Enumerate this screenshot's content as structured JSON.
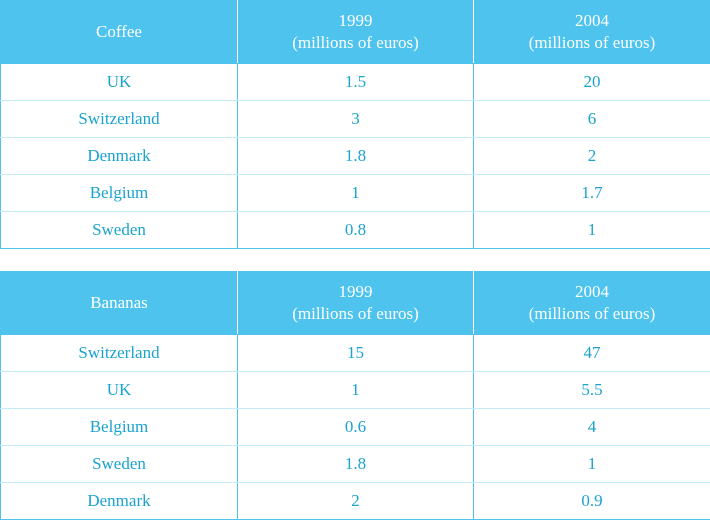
{
  "chart_data": [
    {
      "type": "table",
      "title": "Coffee",
      "columns": [
        "Coffee",
        "1999 (millions of euros)",
        "2004 (millions of euros)"
      ],
      "header": {
        "label": "Coffee",
        "col1_year": "1999",
        "col1_unit": "(millions of euros)",
        "col2_year": "2004",
        "col2_unit": "(millions of euros)"
      },
      "rows": [
        {
          "country": "UK",
          "y1999": "1.5",
          "y2004": "20"
        },
        {
          "country": "Switzerland",
          "y1999": "3",
          "y2004": "6"
        },
        {
          "country": "Denmark",
          "y1999": "1.8",
          "y2004": "2"
        },
        {
          "country": "Belgium",
          "y1999": "1",
          "y2004": "1.7"
        },
        {
          "country": "Sweden",
          "y1999": "0.8",
          "y2004": "1"
        }
      ]
    },
    {
      "type": "table",
      "title": "Bananas",
      "columns": [
        "Bananas",
        "1999 (millions of euros)",
        "2004 (millions of euros)"
      ],
      "header": {
        "label": "Bananas",
        "col1_year": "1999",
        "col1_unit": "(millions of euros)",
        "col2_year": "2004",
        "col2_unit": "(millions of euros)"
      },
      "rows": [
        {
          "country": "Switzerland",
          "y1999": "15",
          "y2004": "47"
        },
        {
          "country": "UK",
          "y1999": "1",
          "y2004": "5.5"
        },
        {
          "country": "Belgium",
          "y1999": "0.6",
          "y2004": "4"
        },
        {
          "country": "Sweden",
          "y1999": "1.8",
          "y2004": "1"
        },
        {
          "country": "Denmark",
          "y1999": "2",
          "y2004": "0.9"
        }
      ]
    }
  ],
  "colors": {
    "header_bg": "#4dc3ee",
    "header_text": "#ffffff",
    "cell_text": "#1aa3cf",
    "border": "#4dc3ee",
    "row_divider": "#c4ebf8"
  }
}
